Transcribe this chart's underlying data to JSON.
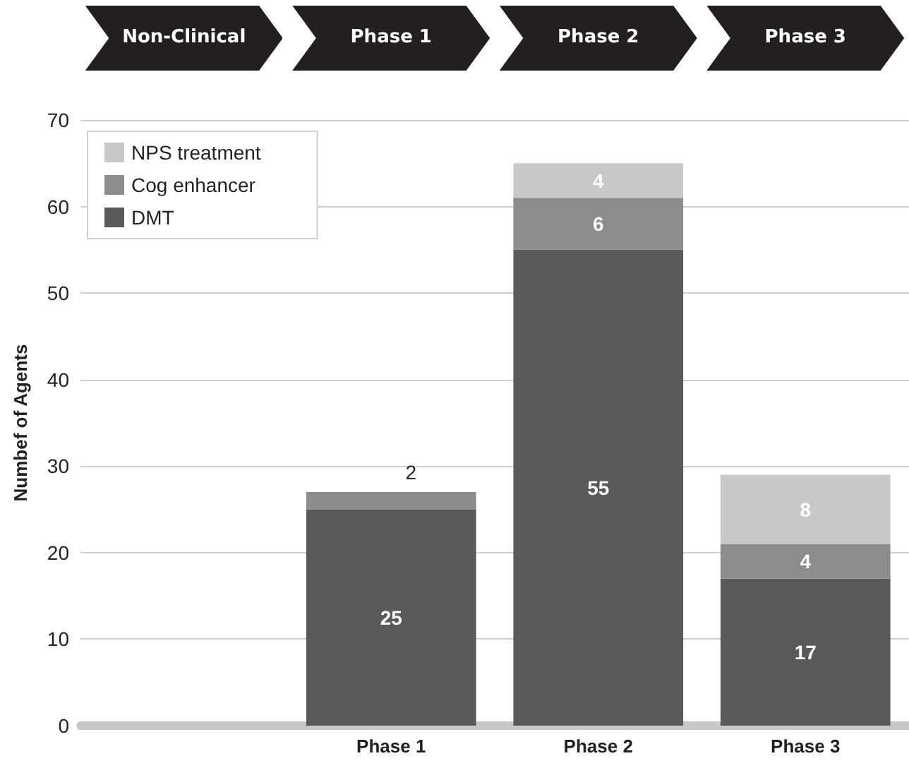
{
  "chart_data": {
    "type": "bar",
    "stacked": true,
    "ylabel": "Numbef of Agents",
    "categories": [
      null,
      "Phase 1",
      "Phase 2",
      "Phase 3"
    ],
    "series": [
      {
        "name": "DMT",
        "color": "#58595b",
        "values": [
          null,
          25,
          55,
          17
        ]
      },
      {
        "name": "Cog enhancer",
        "color": "#8c8c8c",
        "values": [
          null,
          2,
          6,
          4
        ]
      },
      {
        "name": "NPS treatment",
        "color": "#c8c8c8",
        "values": [
          null,
          null,
          4,
          8
        ]
      }
    ],
    "annotations": [
      "Non-Clinical",
      "Phase 1",
      "Phase 2",
      "Phase 3"
    ],
    "ylim": [
      0,
      70
    ],
    "yticks": [
      0,
      10,
      20,
      30,
      40,
      50,
      60,
      70
    ],
    "grid": "y",
    "legend": "top left",
    "data_labels": true
  }
}
